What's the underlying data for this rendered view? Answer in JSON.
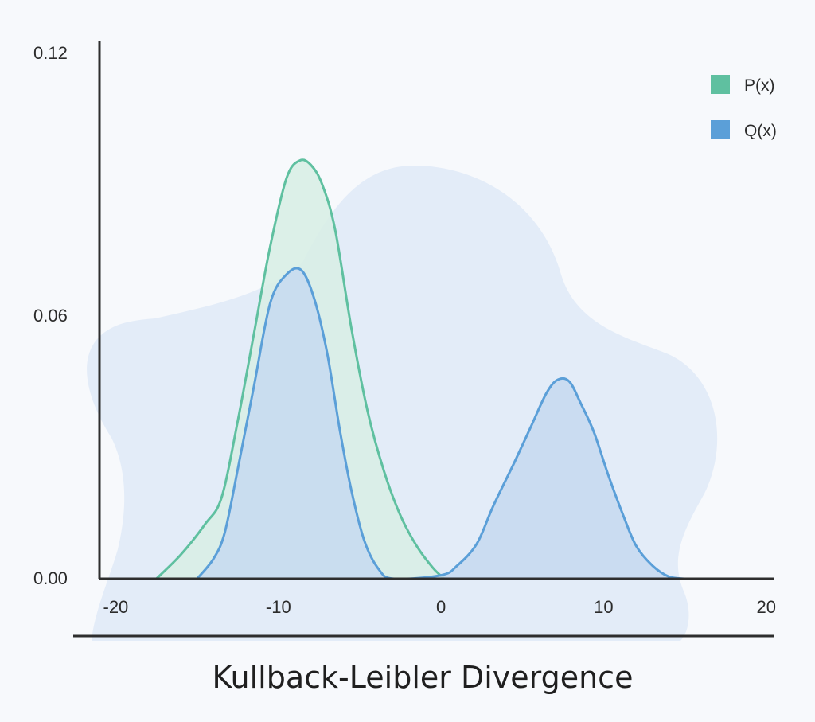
{
  "chart_data": {
    "type": "area",
    "title": "Kullback-Leibler Divergence",
    "xlabel": "",
    "ylabel": "",
    "xlim": [
      -21,
      20.5
    ],
    "ylim": [
      0,
      0.12
    ],
    "x_ticks": [
      -20,
      -10,
      0,
      10,
      20
    ],
    "x_tick_labels": [
      "-20",
      "-10",
      "0",
      "10",
      "20"
    ],
    "y_ticks": [
      0,
      0.06,
      0.12
    ],
    "y_tick_labels": [
      "0.00",
      "0.06",
      "0.12"
    ],
    "grid": false,
    "legend_position": "top-right",
    "series": [
      {
        "name": "P(x)",
        "color": "#5fc0a0",
        "fill": "#d8eee6",
        "x": [
          -17.5,
          -16,
          -14.5,
          -13.5,
          -12.5,
          -11.5,
          -10.5,
          -9.5,
          -8.7,
          -8.0,
          -7.3,
          -6.5,
          -5.5,
          -4.5,
          -3.5,
          -2.5,
          -1.5,
          -0.5,
          0.2
        ],
        "y": [
          0,
          0.0055,
          0.0125,
          0.0185,
          0.036,
          0.056,
          0.076,
          0.0915,
          0.0955,
          0.0945,
          0.09,
          0.0795,
          0.057,
          0.038,
          0.0245,
          0.0145,
          0.0075,
          0.0025,
          0
        ]
      },
      {
        "name": "Q(x)",
        "color": "#5b9fd8",
        "fill": "#c5d9f0",
        "x": [
          -15,
          -14,
          -13.3,
          -12.5,
          -11.5,
          -10.5,
          -9.5,
          -8.6,
          -7.8,
          -7.0,
          -6.2,
          -5.5,
          -4.7,
          -3.8,
          -2.9,
          0,
          1,
          2.2,
          3.2,
          4.5,
          5.5,
          6.5,
          7.2,
          7.9,
          8.6,
          9.4,
          10.3,
          11.2,
          12.0,
          13.0,
          14.0,
          15.0
        ],
        "y": [
          0,
          0.0045,
          0.0105,
          0.025,
          0.044,
          0.063,
          0.0695,
          0.0705,
          0.064,
          0.0515,
          0.0335,
          0.02,
          0.0085,
          0.002,
          0,
          0.0008,
          0.003,
          0.008,
          0.0165,
          0.0265,
          0.0345,
          0.0425,
          0.0455,
          0.045,
          0.04,
          0.0335,
          0.0235,
          0.0145,
          0.0075,
          0.003,
          0.0005,
          0
        ]
      }
    ]
  }
}
